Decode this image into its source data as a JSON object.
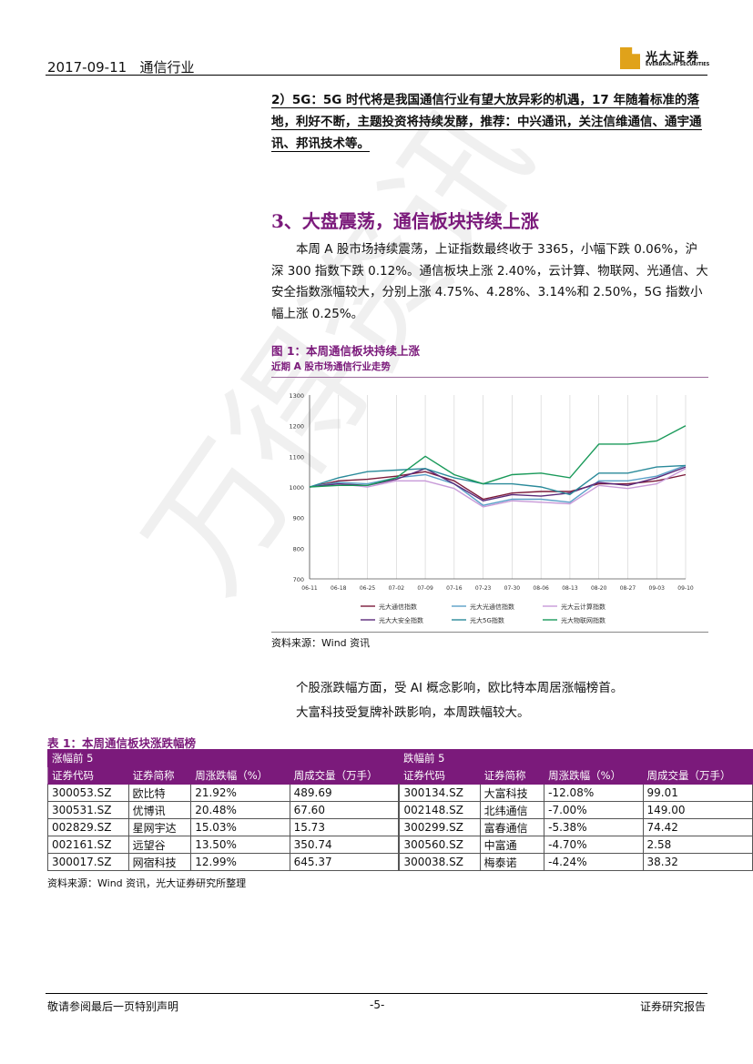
{
  "header": {
    "date": "2017-09-11",
    "industry": "通信行业",
    "logo_cn": "光大证券",
    "logo_en": "EVERBRIGHT SECURITIES"
  },
  "section2": {
    "text_before": "2）5G：5G 时代将是我国通信行业有望大放异彩的机遇，17 年随着标准的落地，利好不断，主题投资将持续发酵，",
    "rec_label": "推荐：中兴通讯，关注信维通信、通宇通讯、邦讯技术等。"
  },
  "section3": {
    "title": "3、大盘震荡，通信板块持续上涨",
    "para": "本周 A 股市场持续震荡，上证指数最终收于 3365，小幅下跌 0.06%，沪深 300 指数下跌 0.12%。通信板块上涨 2.40%，云计算、物联网、光通信、大安全指数涨幅较大，分别上涨 4.75%、4.28%、3.14%和 2.50%，5G 指数小幅上涨 0.25%。"
  },
  "figure1": {
    "title": "图 1：本周通信板块持续上涨",
    "subtitle": "近期 A 股市场通信行业走势",
    "source": "资料来源：Wind 资讯"
  },
  "chart_data": {
    "type": "line",
    "x": [
      "06-11",
      "06-18",
      "06-25",
      "07-02",
      "07-09",
      "07-16",
      "07-23",
      "07-30",
      "08-06",
      "08-13",
      "08-20",
      "08-27",
      "09-03",
      "09-10"
    ],
    "ylim": [
      700,
      1300
    ],
    "yticks": [
      "1300",
      "1200",
      "1100",
      "1000",
      "900",
      "800",
      "700"
    ],
    "series": [
      {
        "name": "光大通信指数",
        "color": "#7b1a3a",
        "values": [
          1000,
          1020,
          1025,
          1035,
          1050,
          1020,
          960,
          980,
          985,
          985,
          1010,
          1010,
          1020,
          1040
        ]
      },
      {
        "name": "光大光通信指数",
        "color": "#5aa0c8",
        "values": [
          1000,
          1015,
          1010,
          1030,
          1040,
          1010,
          940,
          960,
          960,
          950,
          1020,
          1020,
          1035,
          1070
        ]
      },
      {
        "name": "光大云计算指数",
        "color": "#c89ad8",
        "values": [
          1000,
          1010,
          1000,
          1020,
          1020,
          995,
          935,
          955,
          950,
          945,
          1005,
          995,
          1010,
          1060
        ]
      },
      {
        "name": "光大大安全指数",
        "color": "#5a2a7a",
        "values": [
          1000,
          1010,
          1005,
          1025,
          1060,
          1010,
          955,
          975,
          970,
          980,
          1015,
          1005,
          1030,
          1065
        ]
      },
      {
        "name": "光大5G指数",
        "color": "#2a8a9a",
        "values": [
          1000,
          1030,
          1050,
          1055,
          1060,
          1030,
          1010,
          1010,
          1000,
          975,
          1045,
          1045,
          1065,
          1070
        ]
      },
      {
        "name": "光大物联网指数",
        "color": "#1a9a5a",
        "values": [
          1000,
          1005,
          1005,
          1030,
          1100,
          1040,
          1010,
          1040,
          1045,
          1030,
          1140,
          1140,
          1150,
          1200
        ]
      }
    ]
  },
  "para2": {
    "line1": "个股涨跌幅方面，受 AI 概念影响，欧比特本周居涨幅榜首。",
    "line2": "大富科技受复牌补跌影响，本周跌幅较大。"
  },
  "table1": {
    "title": "表 1：本周通信板块涨跌幅榜",
    "group_up": "涨幅前 5",
    "group_down": "跌幅前 5",
    "headers": [
      "证券代码",
      "证券简称",
      "周涨跌幅（%）",
      "周成交量（万手）",
      "证券代码",
      "证券简称",
      "周涨跌幅（%）",
      "周成交量（万手）"
    ],
    "rows": [
      [
        "300053.SZ",
        "欧比特",
        "21.92%",
        "489.69",
        "300134.SZ",
        "大富科技",
        "-12.08%",
        "99.01"
      ],
      [
        "300531.SZ",
        "优博讯",
        "20.48%",
        "67.60",
        "002148.SZ",
        "北纬通信",
        "-7.00%",
        "149.00"
      ],
      [
        "002829.SZ",
        "星网宇达",
        "15.03%",
        "15.73",
        "300299.SZ",
        "富春通信",
        "-5.38%",
        "74.42"
      ],
      [
        "002161.SZ",
        "远望谷",
        "13.50%",
        "350.74",
        "300560.SZ",
        "中富通",
        "-4.70%",
        "2.58"
      ],
      [
        "300017.SZ",
        "网宿科技",
        "12.99%",
        "645.37",
        "300038.SZ",
        "梅泰诺",
        "-4.24%",
        "38.32"
      ]
    ],
    "source": "资料来源：Wind 资讯，光大证券研究所整理"
  },
  "footer": {
    "left": "敬请参阅最后一页特别声明",
    "page": "-5-",
    "right": "证券研究报告"
  }
}
